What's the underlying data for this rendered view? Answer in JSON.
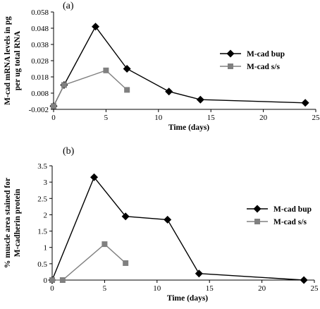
{
  "chart_data": [
    {
      "type": "line",
      "panel_label": "(a)",
      "xlabel": "Time (days)",
      "ylabel_lines": [
        "M-cad mRNA levels in pg",
        "per ug total RNA"
      ],
      "xlim": [
        0,
        25
      ],
      "ylim": [
        -0.002,
        0.058
      ],
      "xticks": [
        "0",
        "5",
        "10",
        "15",
        "20",
        "25"
      ],
      "yticks": [
        "0.058",
        "0.048",
        "0.038",
        "0.028",
        "0.018",
        "0.008",
        "-0.002"
      ],
      "legend_position": "right",
      "series": [
        {
          "name": "M-cad bup",
          "color": "#000000",
          "marker": "diamond",
          "x": [
            0,
            1,
            4,
            7,
            11,
            14,
            24
          ],
          "y": [
            0.0,
            0.013,
            0.049,
            0.023,
            0.009,
            0.004,
            0.002
          ]
        },
        {
          "name": "M-cad s/s",
          "color": "#808080",
          "marker": "square",
          "x": [
            0,
            1,
            5,
            7
          ],
          "y": [
            0.0,
            0.013,
            0.022,
            0.01
          ]
        }
      ]
    },
    {
      "type": "line",
      "panel_label": "(b)",
      "xlabel": "Time (days)",
      "ylabel_lines": [
        "% muscle area stained for",
        "M-cadherin protein"
      ],
      "xlim": [
        0,
        25
      ],
      "ylim": [
        0,
        3.5
      ],
      "xticks": [
        "0",
        "5",
        "10",
        "15",
        "20",
        "25"
      ],
      "yticks": [
        "3.5",
        "3",
        "2.5",
        "2",
        "1.5",
        "1",
        "0.5",
        "0"
      ],
      "legend_position": "right",
      "series": [
        {
          "name": "M-cad bup",
          "color": "#000000",
          "marker": "diamond",
          "x": [
            0,
            4,
            7,
            11,
            14,
            24
          ],
          "y": [
            0.0,
            3.15,
            1.95,
            1.85,
            0.2,
            0.0
          ]
        },
        {
          "name": "M-cad s/s",
          "color": "#808080",
          "marker": "square",
          "x": [
            0,
            1,
            5,
            7
          ],
          "y": [
            0.0,
            0.0,
            1.1,
            0.52
          ]
        }
      ]
    }
  ]
}
